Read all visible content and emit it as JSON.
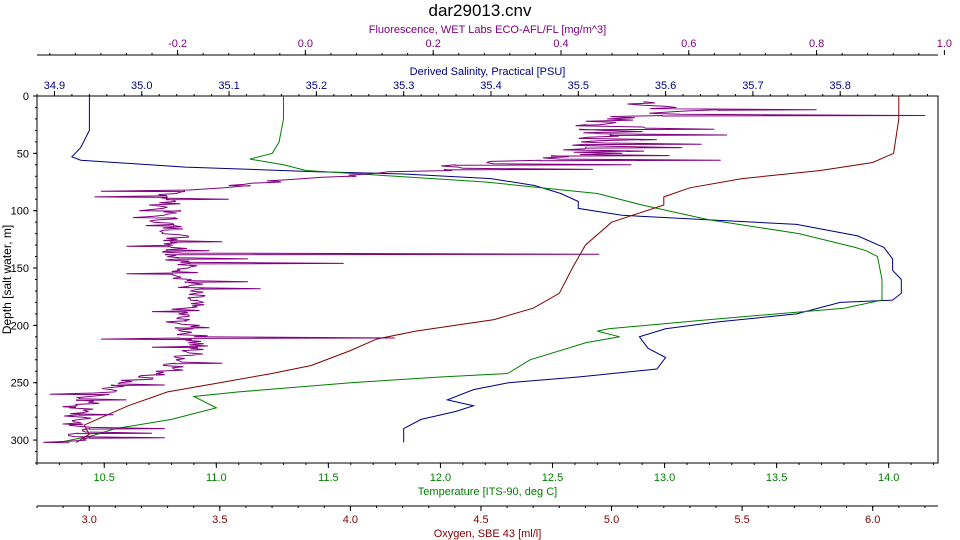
{
  "chart_data": {
    "type": "line",
    "title": "dar29013.cnv",
    "y_axis": {
      "label": "Depth [salt water, m]",
      "range": [
        0,
        320
      ],
      "ticks": [
        0,
        50,
        100,
        150,
        200,
        250,
        300
      ],
      "inverted": true
    },
    "x_axes": [
      {
        "id": "fluor",
        "label": "Fluorescence, WET Labs ECO-AFL/FL [mg/m^3]",
        "position": "top-outer",
        "color": "#800080",
        "range": [
          -0.42,
          0.99
        ],
        "ticks": [
          -0.2,
          0.0,
          0.2,
          0.4,
          0.6,
          0.8,
          1.0
        ],
        "tick_labels": [
          "-0.2",
          "0.0",
          "0.2",
          "0.4",
          "0.6",
          "0.8",
          "1.0"
        ]
      },
      {
        "id": "sal",
        "label": "Derived Salinity, Practical [PSU]",
        "position": "top-inner",
        "color": "#000080",
        "range": [
          34.88,
          35.912
        ],
        "ticks": [
          34.9,
          35.0,
          35.1,
          35.2,
          35.3,
          35.4,
          35.5,
          35.6,
          35.7,
          35.8
        ],
        "tick_labels": [
          "34.9",
          "35.0",
          "35.1",
          "35.2",
          "35.3",
          "35.4",
          "35.5",
          "35.6",
          "35.7",
          "35.8"
        ]
      },
      {
        "id": "temp",
        "label": "Temperature [ITS-90, deg C]",
        "position": "bottom-inner",
        "color": "#008000",
        "range": [
          10.2,
          14.22
        ],
        "ticks": [
          10.5,
          11.0,
          11.5,
          12.0,
          12.5,
          13.0,
          13.5,
          14.0
        ],
        "tick_labels": [
          "10.5",
          "11.0",
          "11.5",
          "12.0",
          "12.5",
          "13.0",
          "13.5",
          "14.0"
        ]
      },
      {
        "id": "oxy",
        "label": "Oxygen, SBE 43 [ml/l]",
        "position": "bottom-outer",
        "color": "#800000",
        "range": [
          2.8,
          6.25
        ],
        "ticks": [
          3.0,
          3.5,
          4.0,
          4.5,
          5.0,
          5.5,
          6.0
        ],
        "tick_labels": [
          "3.0",
          "3.5",
          "4.0",
          "4.5",
          "5.0",
          "5.5",
          "6.0"
        ]
      }
    ],
    "series": [
      {
        "axis": "sal",
        "color": "#000080",
        "noise": 0,
        "points": [
          [
            34.94,
            0
          ],
          [
            34.94,
            12
          ],
          [
            34.94,
            30
          ],
          [
            34.93,
            45
          ],
          [
            34.92,
            53
          ],
          [
            34.93,
            56
          ],
          [
            35.05,
            62
          ],
          [
            35.2,
            66
          ],
          [
            35.3,
            68
          ],
          [
            35.4,
            72
          ],
          [
            35.45,
            78
          ],
          [
            35.48,
            85
          ],
          [
            35.5,
            92
          ],
          [
            35.5,
            98
          ],
          [
            35.55,
            104
          ],
          [
            35.75,
            112
          ],
          [
            35.82,
            122
          ],
          [
            35.85,
            132
          ],
          [
            35.86,
            142
          ],
          [
            35.86,
            152
          ],
          [
            35.87,
            160
          ],
          [
            35.87,
            172
          ],
          [
            35.86,
            178
          ],
          [
            35.8,
            180
          ],
          [
            35.75,
            190
          ],
          [
            35.66,
            197
          ],
          [
            35.6,
            203
          ],
          [
            35.57,
            210
          ],
          [
            35.58,
            220
          ],
          [
            35.6,
            228
          ],
          [
            35.59,
            238
          ],
          [
            35.5,
            245
          ],
          [
            35.42,
            250
          ],
          [
            35.38,
            256
          ],
          [
            35.35,
            265
          ],
          [
            35.38,
            270
          ],
          [
            35.36,
            275
          ],
          [
            35.32,
            282
          ],
          [
            35.3,
            290
          ],
          [
            35.3,
            302
          ]
        ]
      },
      {
        "axis": "temp",
        "color": "#008000",
        "noise": 0,
        "points": [
          [
            11.3,
            0
          ],
          [
            11.3,
            20
          ],
          [
            11.28,
            40
          ],
          [
            11.25,
            50
          ],
          [
            11.15,
            55
          ],
          [
            11.3,
            60
          ],
          [
            11.4,
            65
          ],
          [
            11.8,
            70
          ],
          [
            12.2,
            75
          ],
          [
            12.7,
            85
          ],
          [
            12.9,
            95
          ],
          [
            13.2,
            108
          ],
          [
            13.6,
            120
          ],
          [
            13.85,
            132
          ],
          [
            13.9,
            135
          ],
          [
            13.95,
            140
          ],
          [
            13.97,
            160
          ],
          [
            13.97,
            178
          ],
          [
            13.8,
            185
          ],
          [
            13.2,
            195
          ],
          [
            12.75,
            203
          ],
          [
            12.7,
            205
          ],
          [
            12.8,
            210
          ],
          [
            12.65,
            215
          ],
          [
            12.4,
            230
          ],
          [
            12.3,
            242
          ],
          [
            12.0,
            245
          ],
          [
            11.6,
            250
          ],
          [
            11.1,
            258
          ],
          [
            10.9,
            262
          ],
          [
            11.0,
            272
          ],
          [
            10.8,
            282
          ],
          [
            10.55,
            290
          ],
          [
            10.45,
            296
          ],
          [
            10.3,
            302
          ]
        ]
      },
      {
        "axis": "oxy",
        "color": "#800000",
        "noise": 0,
        "points": [
          [
            6.1,
            0
          ],
          [
            6.1,
            20
          ],
          [
            6.08,
            50
          ],
          [
            6.0,
            58
          ],
          [
            5.8,
            65
          ],
          [
            5.5,
            72
          ],
          [
            5.3,
            80
          ],
          [
            5.2,
            88
          ],
          [
            5.2,
            95
          ],
          [
            5.0,
            110
          ],
          [
            4.9,
            130
          ],
          [
            4.85,
            150
          ],
          [
            4.8,
            172
          ],
          [
            4.7,
            185
          ],
          [
            4.55,
            195
          ],
          [
            4.25,
            205
          ],
          [
            4.1,
            212
          ],
          [
            4.0,
            222
          ],
          [
            3.85,
            235
          ],
          [
            3.7,
            242
          ],
          [
            3.5,
            250
          ],
          [
            3.3,
            258
          ],
          [
            3.15,
            270
          ],
          [
            3.05,
            280
          ],
          [
            2.98,
            287
          ],
          [
            3.0,
            295
          ],
          [
            2.95,
            302
          ]
        ]
      },
      {
        "axis": "fluor",
        "color": "#800080",
        "noise": 1,
        "points": [
          [
            0.53,
            5
          ],
          [
            0.6,
            12
          ],
          [
            0.48,
            22
          ],
          [
            0.47,
            35
          ],
          [
            0.45,
            50
          ],
          [
            0.25,
            62
          ],
          [
            0.0,
            72
          ],
          [
            -0.1,
            78
          ],
          [
            -0.2,
            82
          ],
          [
            -0.22,
            95
          ],
          [
            -0.22,
            110
          ],
          [
            -0.2,
            120
          ],
          [
            -0.2,
            135
          ],
          [
            -0.19,
            150
          ],
          [
            -0.18,
            165
          ],
          [
            -0.18,
            180
          ],
          [
            -0.2,
            195
          ],
          [
            -0.18,
            205
          ],
          [
            -0.17,
            215
          ],
          [
            -0.18,
            225
          ],
          [
            -0.2,
            235
          ],
          [
            -0.22,
            242
          ],
          [
            -0.28,
            250
          ],
          [
            -0.33,
            260
          ],
          [
            -0.35,
            270
          ],
          [
            -0.36,
            280
          ],
          [
            -0.35,
            288
          ],
          [
            -0.35,
            295
          ],
          [
            -0.37,
            302
          ]
        ],
        "spikes": [
          [
            12,
            0.8
          ],
          [
            17,
            0.97
          ],
          [
            25,
            0.46
          ],
          [
            29,
            0.64
          ],
          [
            34,
            0.66
          ],
          [
            38,
            0.55
          ],
          [
            42,
            0.62
          ],
          [
            45,
            0.59
          ],
          [
            48,
            0.53
          ],
          [
            52,
            0.57
          ],
          [
            56,
            0.65
          ],
          [
            60,
            0.51
          ],
          [
            64,
            0.45
          ],
          [
            70,
            0.08
          ],
          [
            74,
            -0.06
          ],
          [
            78,
            -0.12
          ],
          [
            83,
            -0.32
          ],
          [
            88,
            -0.33
          ],
          [
            90,
            -0.12
          ],
          [
            100,
            -0.26
          ],
          [
            106,
            -0.27
          ],
          [
            113,
            -0.25
          ],
          [
            127,
            -0.13
          ],
          [
            131,
            -0.28
          ],
          [
            135,
            -0.15
          ],
          [
            138,
            0.46
          ],
          [
            142,
            -0.09
          ],
          [
            146,
            0.06
          ],
          [
            155,
            -0.28
          ],
          [
            162,
            -0.09
          ],
          [
            168,
            -0.07
          ],
          [
            178,
            -0.18
          ],
          [
            188,
            -0.24
          ],
          [
            196,
            -0.19
          ],
          [
            202,
            -0.15
          ],
          [
            211,
            0.14
          ],
          [
            212,
            -0.32
          ],
          [
            219,
            -0.24
          ],
          [
            233,
            -0.13
          ],
          [
            243,
            -0.22
          ],
          [
            252,
            -0.22
          ],
          [
            260,
            -0.4
          ],
          [
            265,
            -0.28
          ],
          [
            271,
            -0.38
          ],
          [
            278,
            -0.3
          ],
          [
            286,
            -0.38
          ],
          [
            290,
            -0.22
          ],
          [
            294,
            -0.24
          ],
          [
            298,
            -0.22
          ],
          [
            302,
            -0.41
          ]
        ]
      }
    ]
  }
}
